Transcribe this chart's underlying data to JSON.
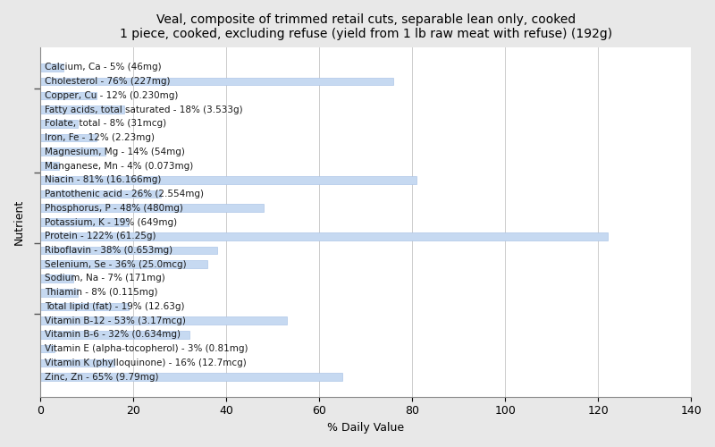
{
  "title": "Veal, composite of trimmed retail cuts, separable lean only, cooked\n1 piece, cooked, excluding refuse (yield from 1 lb raw meat with refuse) (192g)",
  "xlabel": "% Daily Value",
  "ylabel": "Nutrient",
  "nutrients": [
    "Calcium, Ca - 5% (46mg)",
    "Cholesterol - 76% (227mg)",
    "Copper, Cu - 12% (0.230mg)",
    "Fatty acids, total saturated - 18% (3.533g)",
    "Folate, total - 8% (31mcg)",
    "Iron, Fe - 12% (2.23mg)",
    "Magnesium, Mg - 14% (54mg)",
    "Manganese, Mn - 4% (0.073mg)",
    "Niacin - 81% (16.166mg)",
    "Pantothenic acid - 26% (2.554mg)",
    "Phosphorus, P - 48% (480mg)",
    "Potassium, K - 19% (649mg)",
    "Protein - 122% (61.25g)",
    "Riboflavin - 38% (0.653mg)",
    "Selenium, Se - 36% (25.0mcg)",
    "Sodium, Na - 7% (171mg)",
    "Thiamin - 8% (0.115mg)",
    "Total lipid (fat) - 19% (12.63g)",
    "Vitamin B-12 - 53% (3.17mcg)",
    "Vitamin B-6 - 32% (0.634mg)",
    "Vitamin E (alpha-tocopherol) - 3% (0.81mg)",
    "Vitamin K (phylloquinone) - 16% (12.7mcg)",
    "Zinc, Zn - 65% (9.79mg)"
  ],
  "values": [
    5,
    76,
    12,
    18,
    8,
    12,
    14,
    4,
    81,
    26,
    48,
    19,
    122,
    38,
    36,
    7,
    8,
    19,
    53,
    32,
    3,
    16,
    65
  ],
  "bar_color": "#c6d9f1",
  "bar_edge_color": "#aec6e8",
  "background_color": "#e8e8e8",
  "plot_background_color": "#ffffff",
  "xlim": [
    0,
    140
  ],
  "xticks": [
    0,
    20,
    40,
    60,
    80,
    100,
    120,
    140
  ],
  "title_fontsize": 10,
  "label_fontsize": 7.5,
  "tick_fontsize": 9,
  "bar_height": 0.55,
  "ytick_group_positions": [
    1.5,
    7.5,
    12.5,
    17.5
  ],
  "figsize": [
    8.0,
    5.0
  ],
  "dpi": 100
}
